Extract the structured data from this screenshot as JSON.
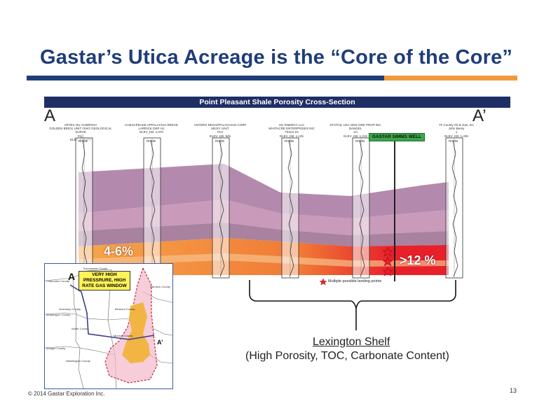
{
  "title": "Gastar’s Utica Acreage is the “Core of the Core”",
  "cross_section": {
    "header": "Point Pleasant Shale Porosity Cross-Section",
    "start_label": "A",
    "end_label": "A’",
    "wells": [
      {
        "lines": [
          "ARTEX OIL COMPANY",
          "GOLDEN BRICK UNIT OHIO GEOLOGICAL SURVE",
          "#1()",
          "ELEV_KB: 970"
        ]
      },
      {
        "lines": [
          "CHESAPEAKE APPALACHIA REEVE",
          "LARRICK DEP H1",
          "",
          "ELEV_KB: 1,070"
        ]
      },
      {
        "lines": [
          "ANTERO RESAPPALACHIAN CORP",
          "MILEY UNIT",
          "#1H",
          "ELEV_KB: 945"
        ]
      },
      {
        "lines": [
          "HG ENERGY LLC",
          "WHITACRE ENTERPRISES INC",
          "7011H-24",
          "ELEV_KB: 1,125"
        ]
      },
      {
        "lines": [
          "STATOIL USA ONS-ORE PROP INC",
          "DANGEL",
          "1H",
          "ELEV_KB: 1,215"
        ]
      },
      {
        "lines": [
          "Tri County Oil & Gas, Inc",
          "John Berey",
          "1",
          "ELEV_KB: 1,435"
        ]
      }
    ],
    "track_label": "RHOB",
    "gastar_well_label": "GASTAR SIMMS WELL",
    "porosity_left": "4-6%",
    "porosity_right": ">12 %",
    "landing_note": "Multiple possible landing points"
  },
  "inset_map": {
    "label_a": "A",
    "label_a_prime": "A’",
    "callout": "VERY HIGH PRESSRURE, HIGH RATE GAS WINDOW",
    "counties": [
      "Tuscarawas County",
      "Coshocton County",
      "Guernsey County",
      "Belmont County",
      "Noble County",
      "Monroe County",
      "Washington County",
      "Morgan County",
      "Harrison County",
      "Muskingum County"
    ]
  },
  "lexington": {
    "title": "Lexington Shelf",
    "subtitle": "(High Porosity, TOC, Carbonate Content)"
  },
  "footer": "© 2014 Gastar Exploration Inc.",
  "page_number": "13",
  "colors": {
    "title_blue": "#1f3d7a",
    "accent_orange": "#f09a3c",
    "header_navy": "#1f2f66",
    "gastar_green": "#3aa64a",
    "porosity_red": "#e8202a"
  }
}
